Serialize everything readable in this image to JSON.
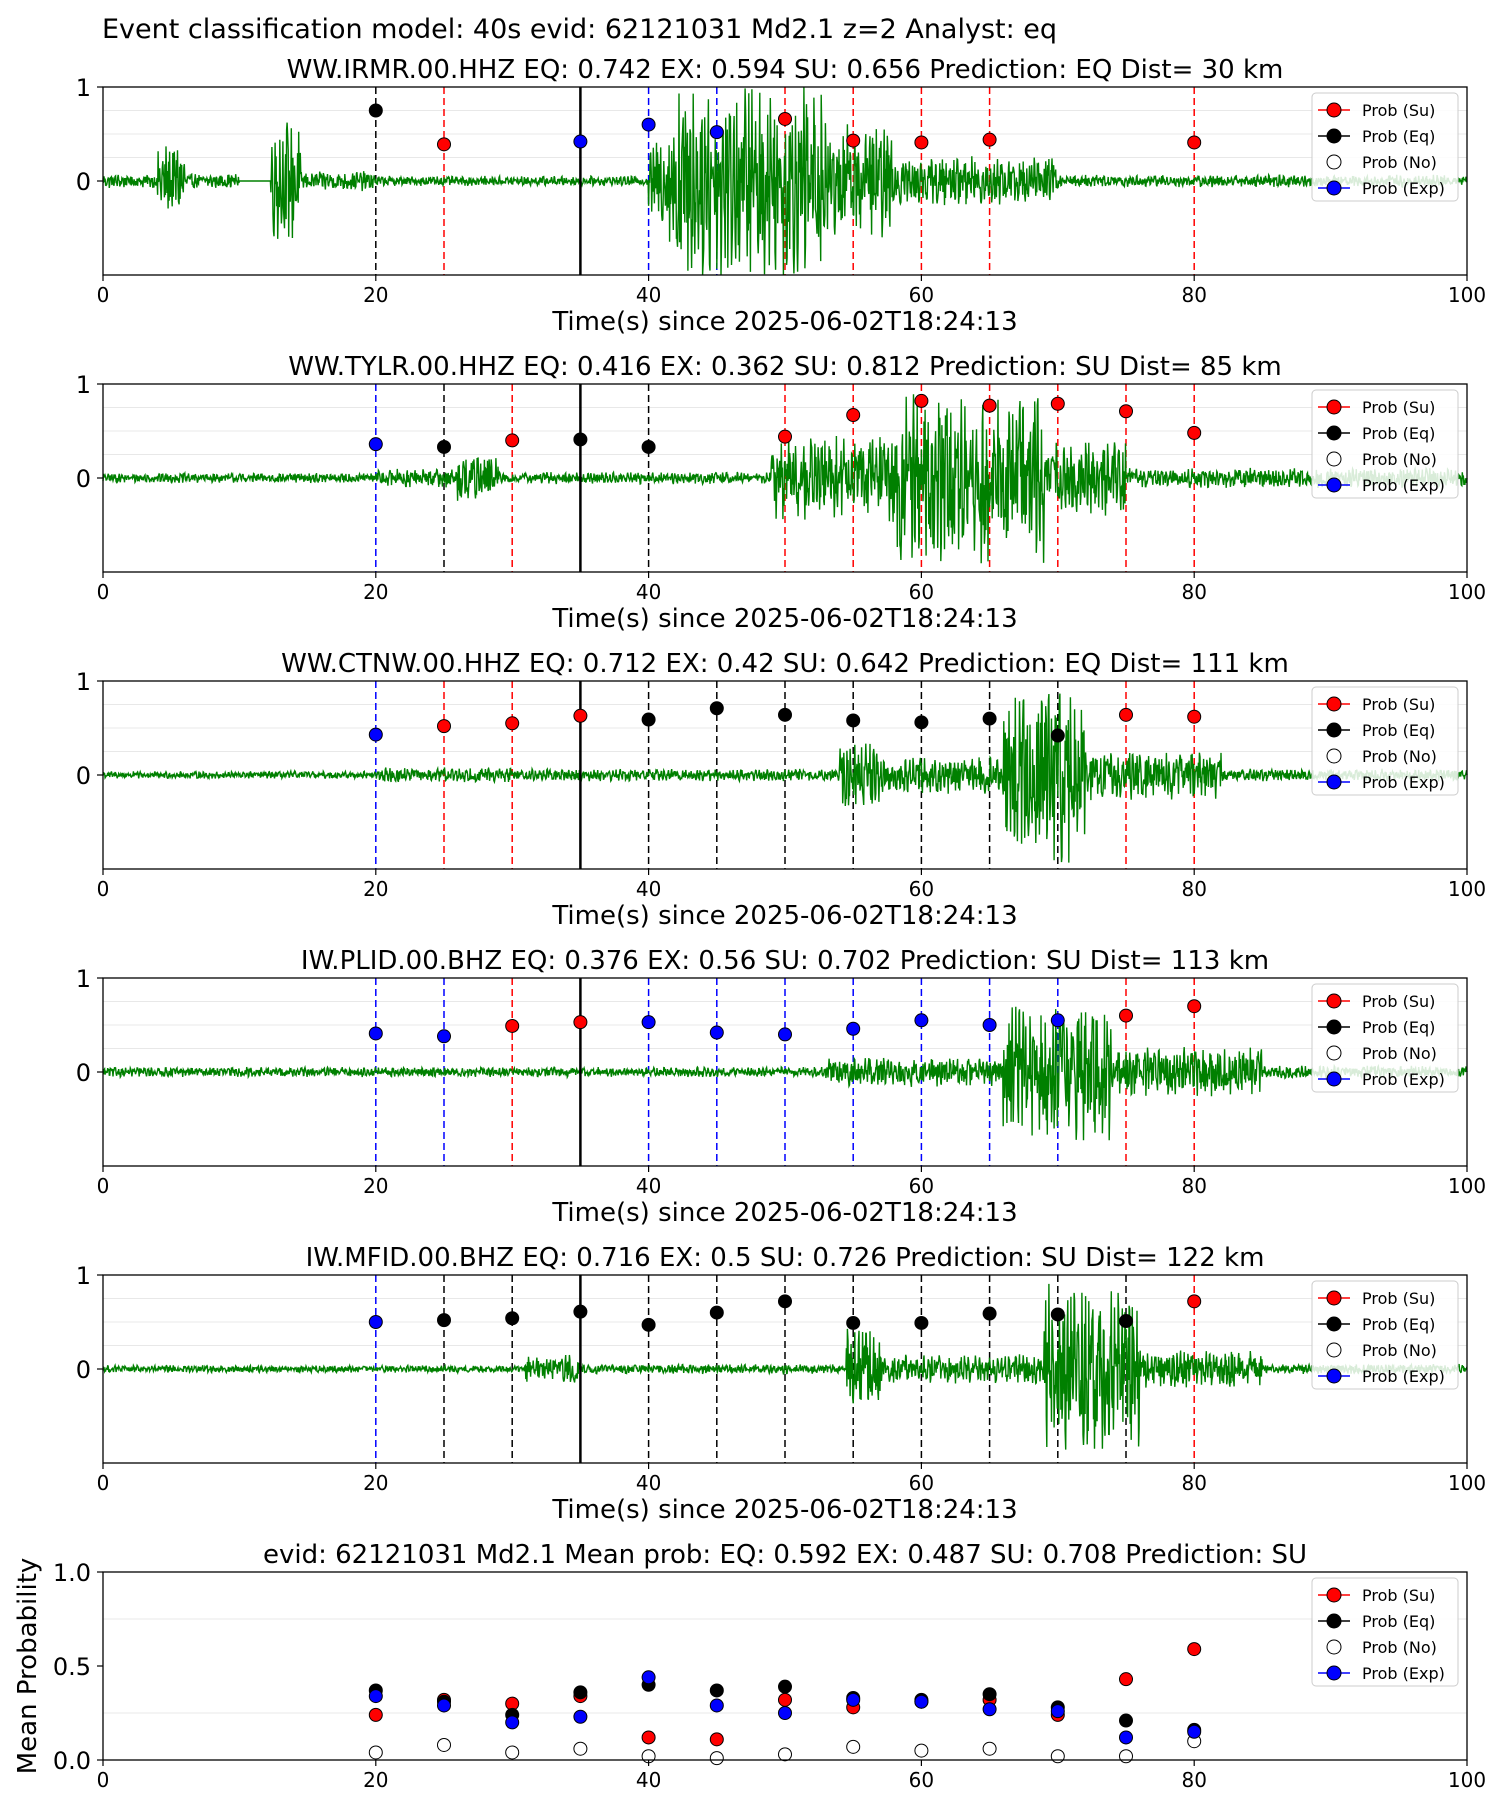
{
  "figure_title": "Event classification model: 40s evid: 62121031 Md2.1 z=2 Analyst: eq",
  "colors": {
    "waveform": "#008000",
    "su": "#ff0000",
    "eq": "#000000",
    "no": "#ffffff",
    "exp": "#0000ff"
  },
  "legend": [
    "Prob (Su)",
    "Prob (Eq)",
    "Prob (No)",
    "Prob (Exp)"
  ],
  "chart_data": [
    {
      "type": "line",
      "title": "WW.IRMR.00.HHZ   EQ: 0.742  EX: 0.594  SU: 0.656   Prediction: EQ    Dist= 30 km",
      "xlabel": "Time(s) since 2025-06-02T18:24:13",
      "ylabel": "",
      "xlim": [
        0,
        100
      ],
      "ylim": [
        -1,
        1
      ],
      "xticks": [
        "0",
        "20",
        "40",
        "60",
        "80",
        "100"
      ],
      "yticks": [
        "0",
        "1"
      ],
      "origin_time": 35,
      "waveform_segments": [
        {
          "t0": 0,
          "t1": 10,
          "amp": 0.06
        },
        {
          "t0": 4,
          "t1": 6,
          "amp": 0.3
        },
        {
          "t0": 12.3,
          "t1": 14.5,
          "amp": 0.5
        },
        {
          "t0": 14.5,
          "t1": 20,
          "amp": 0.08
        },
        {
          "t0": 20,
          "t1": 40,
          "amp": 0.04
        },
        {
          "t0": 40,
          "t1": 41.5,
          "amp": 0.35
        },
        {
          "t0": 41.5,
          "t1": 53,
          "amp": 0.8
        },
        {
          "t0": 53,
          "t1": 58,
          "amp": 0.45
        },
        {
          "t0": 58,
          "t1": 70,
          "amp": 0.2
        },
        {
          "t0": 70,
          "t1": 100,
          "amp": 0.05
        }
      ],
      "points": [
        {
          "x": 20,
          "y": 0.75,
          "cls": "eq"
        },
        {
          "x": 25,
          "y": 0.39,
          "cls": "su"
        },
        {
          "x": 35,
          "y": 0.42,
          "cls": "exp"
        },
        {
          "x": 40,
          "y": 0.6,
          "cls": "exp"
        },
        {
          "x": 45,
          "y": 0.52,
          "cls": "exp"
        },
        {
          "x": 50,
          "y": 0.66,
          "cls": "su"
        },
        {
          "x": 55,
          "y": 0.43,
          "cls": "su"
        },
        {
          "x": 60,
          "y": 0.41,
          "cls": "su"
        },
        {
          "x": 65,
          "y": 0.44,
          "cls": "su"
        },
        {
          "x": 80,
          "y": 0.41,
          "cls": "su"
        }
      ]
    },
    {
      "type": "line",
      "title": "WW.TYLR.00.HHZ   EQ: 0.416  EX: 0.362  SU: 0.812   Prediction: SU    Dist= 85 km",
      "xlabel": "Time(s) since 2025-06-02T18:24:13",
      "ylabel": "",
      "xlim": [
        0,
        100
      ],
      "ylim": [
        -1,
        1
      ],
      "xticks": [
        "0",
        "20",
        "40",
        "60",
        "80",
        "100"
      ],
      "yticks": [
        "0",
        "1"
      ],
      "origin_time": 35,
      "waveform_segments": [
        {
          "t0": 0,
          "t1": 20,
          "amp": 0.04
        },
        {
          "t0": 20,
          "t1": 26,
          "amp": 0.08
        },
        {
          "t0": 26,
          "t1": 29,
          "amp": 0.2
        },
        {
          "t0": 29,
          "t1": 49,
          "amp": 0.05
        },
        {
          "t0": 49,
          "t1": 58,
          "amp": 0.35
        },
        {
          "t0": 58,
          "t1": 69,
          "amp": 0.7
        },
        {
          "t0": 69,
          "t1": 75,
          "amp": 0.3
        },
        {
          "t0": 75,
          "t1": 100,
          "amp": 0.08
        }
      ],
      "points": [
        {
          "x": 20,
          "y": 0.36,
          "cls": "exp"
        },
        {
          "x": 25,
          "y": 0.33,
          "cls": "eq"
        },
        {
          "x": 30,
          "y": 0.4,
          "cls": "su"
        },
        {
          "x": 35,
          "y": 0.41,
          "cls": "eq"
        },
        {
          "x": 40,
          "y": 0.33,
          "cls": "eq"
        },
        {
          "x": 50,
          "y": 0.44,
          "cls": "su"
        },
        {
          "x": 55,
          "y": 0.67,
          "cls": "su"
        },
        {
          "x": 60,
          "y": 0.82,
          "cls": "su"
        },
        {
          "x": 65,
          "y": 0.77,
          "cls": "su"
        },
        {
          "x": 70,
          "y": 0.79,
          "cls": "su"
        },
        {
          "x": 75,
          "y": 0.71,
          "cls": "su"
        },
        {
          "x": 80,
          "y": 0.48,
          "cls": "su"
        }
      ]
    },
    {
      "type": "line",
      "title": "WW.CTNW.00.HHZ   EQ: 0.712  EX: 0.42  SU: 0.642   Prediction: EQ    Dist= 111 km",
      "xlabel": "Time(s) since 2025-06-02T18:24:13",
      "ylabel": "",
      "xlim": [
        0,
        100
      ],
      "ylim": [
        -1,
        1
      ],
      "xticks": [
        "0",
        "20",
        "40",
        "60",
        "80",
        "100"
      ],
      "yticks": [
        "0",
        "1"
      ],
      "origin_time": 35,
      "waveform_segments": [
        {
          "t0": 0,
          "t1": 20,
          "amp": 0.03
        },
        {
          "t0": 20,
          "t1": 30,
          "amp": 0.06
        },
        {
          "t0": 30,
          "t1": 54,
          "amp": 0.05
        },
        {
          "t0": 54,
          "t1": 57,
          "amp": 0.3
        },
        {
          "t0": 57,
          "t1": 66,
          "amp": 0.15
        },
        {
          "t0": 66,
          "t1": 72,
          "amp": 0.7
        },
        {
          "t0": 72,
          "t1": 82,
          "amp": 0.2
        },
        {
          "t0": 82,
          "t1": 100,
          "amp": 0.05
        }
      ],
      "points": [
        {
          "x": 20,
          "y": 0.43,
          "cls": "exp"
        },
        {
          "x": 25,
          "y": 0.52,
          "cls": "su"
        },
        {
          "x": 30,
          "y": 0.55,
          "cls": "su"
        },
        {
          "x": 35,
          "y": 0.63,
          "cls": "su"
        },
        {
          "x": 40,
          "y": 0.59,
          "cls": "eq"
        },
        {
          "x": 45,
          "y": 0.71,
          "cls": "eq"
        },
        {
          "x": 50,
          "y": 0.64,
          "cls": "eq"
        },
        {
          "x": 55,
          "y": 0.58,
          "cls": "eq"
        },
        {
          "x": 60,
          "y": 0.56,
          "cls": "eq"
        },
        {
          "x": 65,
          "y": 0.6,
          "cls": "eq"
        },
        {
          "x": 70,
          "y": 0.42,
          "cls": "eq"
        },
        {
          "x": 75,
          "y": 0.64,
          "cls": "su"
        },
        {
          "x": 80,
          "y": 0.62,
          "cls": "su"
        }
      ]
    },
    {
      "type": "line",
      "title": "IW.PLID.00.BHZ   EQ: 0.376  EX: 0.56  SU: 0.702   Prediction: SU    Dist= 113 km",
      "xlabel": "Time(s) since 2025-06-02T18:24:13",
      "ylabel": "",
      "xlim": [
        0,
        100
      ],
      "ylim": [
        -1,
        1
      ],
      "xticks": [
        "0",
        "20",
        "40",
        "60",
        "80",
        "100"
      ],
      "yticks": [
        "0",
        "1"
      ],
      "origin_time": 35,
      "waveform_segments": [
        {
          "t0": 0,
          "t1": 53,
          "amp": 0.04
        },
        {
          "t0": 53,
          "t1": 66,
          "amp": 0.12
        },
        {
          "t0": 66,
          "t1": 74,
          "amp": 0.55
        },
        {
          "t0": 74,
          "t1": 85,
          "amp": 0.2
        },
        {
          "t0": 85,
          "t1": 100,
          "amp": 0.05
        }
      ],
      "points": [
        {
          "x": 20,
          "y": 0.41,
          "cls": "exp"
        },
        {
          "x": 25,
          "y": 0.38,
          "cls": "exp"
        },
        {
          "x": 30,
          "y": 0.49,
          "cls": "su"
        },
        {
          "x": 35,
          "y": 0.53,
          "cls": "su"
        },
        {
          "x": 40,
          "y": 0.53,
          "cls": "exp"
        },
        {
          "x": 45,
          "y": 0.42,
          "cls": "exp"
        },
        {
          "x": 50,
          "y": 0.4,
          "cls": "exp"
        },
        {
          "x": 55,
          "y": 0.46,
          "cls": "exp"
        },
        {
          "x": 60,
          "y": 0.55,
          "cls": "exp"
        },
        {
          "x": 65,
          "y": 0.5,
          "cls": "exp"
        },
        {
          "x": 70,
          "y": 0.55,
          "cls": "exp"
        },
        {
          "x": 75,
          "y": 0.6,
          "cls": "su"
        },
        {
          "x": 80,
          "y": 0.7,
          "cls": "su"
        }
      ]
    },
    {
      "type": "line",
      "title": "IW.MFID.00.BHZ   EQ: 0.716  EX: 0.5  SU: 0.726   Prediction: SU    Dist= 122 km",
      "xlabel": "Time(s) since 2025-06-02T18:24:13",
      "ylabel": "",
      "xlim": [
        0,
        100
      ],
      "ylim": [
        -1,
        1
      ],
      "xticks": [
        "0",
        "20",
        "40",
        "60",
        "80",
        "100"
      ],
      "yticks": [
        "0",
        "1"
      ],
      "origin_time": 35,
      "waveform_segments": [
        {
          "t0": 0,
          "t1": 31,
          "amp": 0.03
        },
        {
          "t0": 31,
          "t1": 35,
          "amp": 0.12
        },
        {
          "t0": 35,
          "t1": 54.5,
          "amp": 0.04
        },
        {
          "t0": 54.5,
          "t1": 57,
          "amp": 0.35
        },
        {
          "t0": 57,
          "t1": 69,
          "amp": 0.12
        },
        {
          "t0": 69,
          "t1": 76,
          "amp": 0.7
        },
        {
          "t0": 76,
          "t1": 85,
          "amp": 0.15
        },
        {
          "t0": 85,
          "t1": 100,
          "amp": 0.04
        }
      ],
      "points": [
        {
          "x": 20,
          "y": 0.5,
          "cls": "exp"
        },
        {
          "x": 25,
          "y": 0.52,
          "cls": "eq"
        },
        {
          "x": 30,
          "y": 0.54,
          "cls": "eq"
        },
        {
          "x": 35,
          "y": 0.61,
          "cls": "eq"
        },
        {
          "x": 40,
          "y": 0.47,
          "cls": "eq"
        },
        {
          "x": 45,
          "y": 0.6,
          "cls": "eq"
        },
        {
          "x": 50,
          "y": 0.72,
          "cls": "eq"
        },
        {
          "x": 55,
          "y": 0.49,
          "cls": "eq"
        },
        {
          "x": 60,
          "y": 0.49,
          "cls": "eq"
        },
        {
          "x": 65,
          "y": 0.59,
          "cls": "eq"
        },
        {
          "x": 70,
          "y": 0.58,
          "cls": "eq"
        },
        {
          "x": 75,
          "y": 0.51,
          "cls": "eq"
        },
        {
          "x": 80,
          "y": 0.72,
          "cls": "su"
        }
      ]
    },
    {
      "type": "scatter",
      "title": "evid: 62121031  Md2.1   Mean prob:   EQ: 0.592  EX: 0.487  SU: 0.708   Prediction: SU",
      "xlabel": "",
      "ylabel": "Mean Probability",
      "xlim": [
        0,
        100
      ],
      "ylim": [
        0,
        1
      ],
      "xticks": [
        "0",
        "20",
        "40",
        "60",
        "80",
        "100"
      ],
      "yticks": [
        "0.0",
        "0.5",
        "1.0"
      ],
      "x": [
        20,
        25,
        30,
        35,
        40,
        45,
        50,
        55,
        60,
        65,
        70,
        75,
        80
      ],
      "series": [
        {
          "name": "Prob (Su)",
          "key": "su",
          "values": [
            0.24,
            0.32,
            0.3,
            0.34,
            0.12,
            0.11,
            0.32,
            0.28,
            0.31,
            0.32,
            0.24,
            0.43,
            0.59
          ]
        },
        {
          "name": "Prob (Eq)",
          "key": "eq",
          "values": [
            0.37,
            0.31,
            0.24,
            0.36,
            0.4,
            0.37,
            0.39,
            0.33,
            0.32,
            0.35,
            0.28,
            0.21,
            0.16
          ]
        },
        {
          "name": "Prob (No)",
          "key": "no",
          "values": [
            0.04,
            0.08,
            0.04,
            0.06,
            0.02,
            0.01,
            0.03,
            0.07,
            0.05,
            0.06,
            0.02,
            0.02,
            0.1
          ]
        },
        {
          "name": "Prob (Exp)",
          "key": "exp",
          "values": [
            0.34,
            0.29,
            0.2,
            0.23,
            0.44,
            0.29,
            0.25,
            0.32,
            0.31,
            0.27,
            0.26,
            0.12,
            0.15
          ]
        }
      ]
    }
  ]
}
